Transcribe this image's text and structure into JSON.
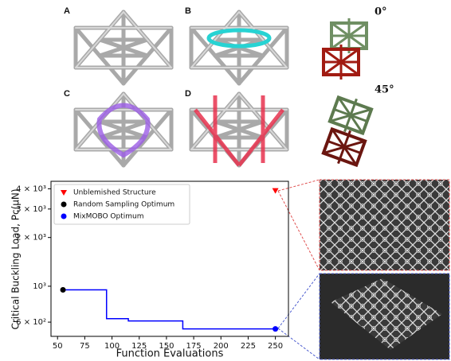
{
  "figure": {
    "panel_labels": [
      "A",
      "B",
      "C",
      "D"
    ],
    "angle_labels": [
      "0°",
      "45°"
    ]
  },
  "chart_data": {
    "type": "line",
    "xlabel": "Function Evaluations",
    "ylabel": "Critical Buckling Load, Pc(μN)",
    "xlim": [
      44,
      262
    ],
    "xticks": [
      50,
      75,
      100,
      125,
      150,
      175,
      200,
      225,
      250
    ],
    "ylim": [
      490,
      4450
    ],
    "yscale": "log",
    "yticks": [
      {
        "value": 600,
        "label": "6 × 10²"
      },
      {
        "value": 1000,
        "label": "10³"
      },
      {
        "value": 2000,
        "label": "2 × 10³"
      },
      {
        "value": 3000,
        "label": "3 × 10³"
      },
      {
        "value": 4000,
        "label": "4 × 10³"
      }
    ],
    "history": {
      "color": "#0000ff",
      "drawstyle": "steps-post",
      "x": [
        55,
        95,
        115,
        165,
        250
      ],
      "values": [
        950,
        630,
        610,
        545,
        545
      ]
    },
    "series": [
      {
        "name": "Unblemished Structure",
        "color": "#ff0000",
        "marker": "triangle",
        "x": [
          250
        ],
        "values": [
          3900
        ]
      },
      {
        "name": "Random Sampling Optimum",
        "color": "#000000",
        "marker": "circle",
        "x": [
          55
        ],
        "values": [
          950
        ]
      },
      {
        "name": "MixMOBO Optimum",
        "color": "#0000ff",
        "marker": "circle",
        "x": [
          250
        ],
        "values": [
          545
        ]
      }
    ],
    "legend": "upper left"
  }
}
